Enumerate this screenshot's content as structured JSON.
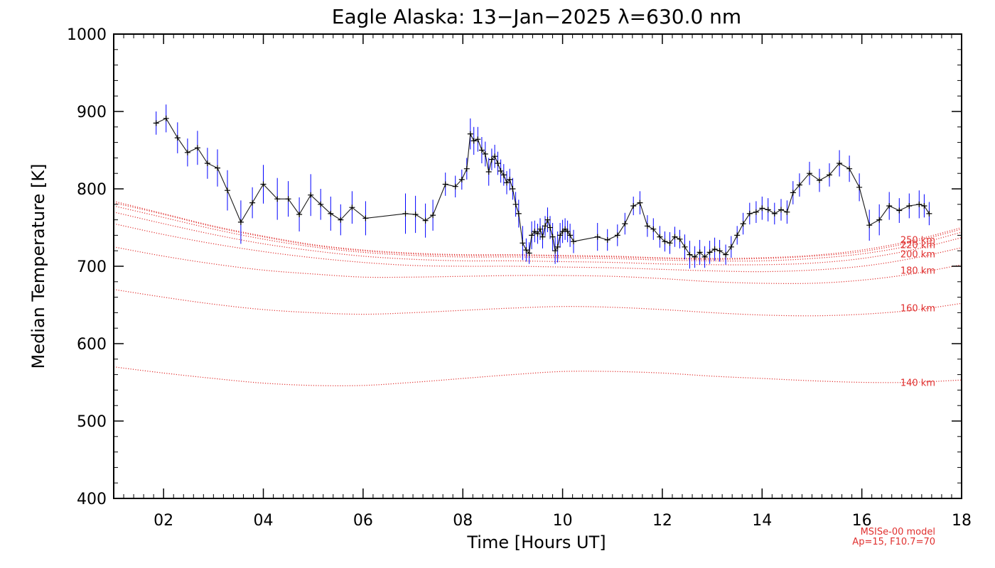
{
  "chart_data": {
    "type": "line",
    "title": "Eagle Alaska: 13−Jan−2025 λ=630.0 nm",
    "xlabel": "Time [Hours UT]",
    "ylabel": "Median Temperature [K]",
    "xlim": [
      1.0,
      18.0
    ],
    "ylim": [
      400,
      1000
    ],
    "x_ticks": [
      2,
      4,
      6,
      8,
      10,
      12,
      14,
      16,
      18
    ],
    "x_tick_labels": [
      "02",
      "04",
      "06",
      "08",
      "10",
      "12",
      "14",
      "16",
      "18"
    ],
    "y_ticks": [
      400,
      500,
      600,
      700,
      800,
      900,
      1000
    ],
    "y_tick_labels": [
      "400",
      "500",
      "600",
      "700",
      "800",
      "900",
      "1000"
    ],
    "colors": {
      "data_line": "#1a1a1a",
      "error_bars": "#0000ff",
      "model": "#e0302f"
    },
    "series": [
      {
        "name": "Median temperature",
        "x": [
          1.85,
          2.05,
          2.28,
          2.48,
          2.68,
          2.88,
          3.08,
          3.28,
          3.55,
          3.78,
          4.0,
          4.28,
          4.5,
          4.72,
          4.95,
          5.15,
          5.35,
          5.55,
          5.78,
          6.05,
          6.85,
          7.05,
          7.25,
          7.4,
          7.65,
          7.85,
          7.98,
          8.08,
          8.15,
          8.22,
          8.3,
          8.38,
          8.45,
          8.52,
          8.58,
          8.64,
          8.7,
          8.76,
          8.82,
          8.88,
          8.94,
          9.0,
          9.06,
          9.12,
          9.2,
          9.27,
          9.33,
          9.38,
          9.44,
          9.5,
          9.55,
          9.6,
          9.65,
          9.7,
          9.75,
          9.8,
          9.85,
          9.9,
          9.95,
          10.0,
          10.05,
          10.1,
          10.15,
          10.22,
          10.7,
          10.9,
          11.1,
          11.25,
          11.42,
          11.55,
          11.7,
          11.82,
          11.95,
          12.05,
          12.15,
          12.25,
          12.35,
          12.45,
          12.55,
          12.65,
          12.75,
          12.85,
          12.95,
          13.05,
          13.15,
          13.27,
          13.38,
          13.5,
          13.62,
          13.75,
          13.88,
          14.0,
          14.12,
          14.25,
          14.38,
          14.5,
          14.62,
          14.75,
          14.95,
          15.15,
          15.35,
          15.55,
          15.75,
          15.95,
          16.15,
          16.35,
          16.55,
          16.75,
          16.95,
          17.15,
          17.25,
          17.35
        ],
        "y": [
          885,
          891,
          866,
          847,
          853,
          833,
          827,
          798,
          757,
          782,
          806,
          787,
          787,
          767,
          792,
          780,
          768,
          760,
          776,
          762,
          768,
          767,
          759,
          766,
          806,
          803,
          812,
          826,
          871,
          862,
          864,
          850,
          845,
          822,
          838,
          842,
          833,
          823,
          818,
          808,
          812,
          800,
          780,
          768,
          730,
          721,
          717,
          740,
          745,
          742,
          748,
          738,
          752,
          760,
          750,
          738,
          720,
          725,
          740,
          745,
          748,
          745,
          740,
          732,
          738,
          734,
          740,
          755,
          778,
          782,
          752,
          748,
          738,
          732,
          730,
          738,
          735,
          725,
          715,
          712,
          718,
          712,
          718,
          722,
          720,
          715,
          725,
          740,
          755,
          768,
          770,
          775,
          773,
          768,
          773,
          770,
          795,
          805,
          820,
          811,
          818,
          833,
          826,
          802,
          753,
          760,
          778,
          772,
          778,
          780,
          778,
          768
        ]
      }
    ],
    "error_bars": [
      15,
      18,
      20,
      18,
      22,
      20,
      24,
      26,
      28,
      20,
      25,
      27,
      23,
      22,
      27,
      20,
      22,
      20,
      21,
      22,
      26,
      24,
      22,
      20,
      15,
      14,
      13,
      14,
      20,
      18,
      16,
      17,
      16,
      18,
      14,
      15,
      15,
      15,
      14,
      15,
      14,
      14,
      16,
      18,
      22,
      15,
      14,
      18,
      14,
      13,
      14,
      15,
      13,
      16,
      15,
      18,
      17,
      20,
      16,
      15,
      14,
      14,
      15,
      15,
      18,
      14,
      14,
      14,
      12,
      15,
      14,
      14,
      14,
      13,
      14,
      13,
      12,
      16,
      18,
      14,
      16,
      14,
      15,
      15,
      14,
      13,
      14,
      12,
      14,
      14,
      14,
      15,
      15,
      14,
      14,
      15,
      15,
      15,
      15,
      15,
      15,
      17,
      17,
      18,
      20,
      20,
      18,
      16,
      16,
      18,
      15,
      15
    ],
    "model": {
      "name": "MSISe-00 model",
      "x": [
        1.0,
        2.0,
        3.0,
        4.0,
        5.0,
        6.0,
        7.0,
        8.0,
        9.0,
        10.0,
        11.0,
        12.0,
        13.0,
        14.0,
        15.0,
        16.0,
        17.0,
        18.0
      ],
      "curves": [
        {
          "label": "140 km",
          "y": [
            570,
            562,
            555,
            549,
            546,
            546,
            550,
            555,
            560,
            564,
            564,
            562,
            558,
            555,
            552,
            550,
            550,
            553
          ]
        },
        {
          "label": "160 km",
          "y": [
            670,
            660,
            651,
            644,
            640,
            638,
            640,
            643,
            646,
            648,
            647,
            644,
            640,
            637,
            636,
            638,
            643,
            652
          ]
        },
        {
          "label": "180 km",
          "y": [
            725,
            713,
            703,
            695,
            690,
            686,
            686,
            687,
            688,
            688,
            687,
            684,
            680,
            678,
            678,
            682,
            690,
            702
          ]
        },
        {
          "label": "200 km",
          "y": [
            755,
            741,
            729,
            719,
            711,
            705,
            701,
            700,
            700,
            699,
            698,
            696,
            694,
            693,
            695,
            700,
            710,
            724
          ]
        },
        {
          "label": "220 km",
          "y": [
            770,
            755,
            741,
            729,
            720,
            713,
            709,
            707,
            707,
            706,
            705,
            703,
            702,
            702,
            704,
            710,
            721,
            737
          ]
        },
        {
          "label": "250 km",
          "y": [
            778,
            763,
            748,
            735,
            725,
            718,
            714,
            712,
            712,
            711,
            710,
            708,
            707,
            707,
            710,
            716,
            727,
            744
          ]
        },
        {
          "label": "",
          "y": [
            782,
            767,
            751,
            738,
            727,
            720,
            716,
            714,
            714,
            713,
            712,
            710,
            709,
            710,
            713,
            719,
            731,
            748
          ]
        },
        {
          "label": "",
          "y": [
            784,
            768,
            752,
            739,
            728,
            721,
            717,
            715,
            715,
            714,
            713,
            711,
            710,
            711,
            714,
            721,
            733,
            750
          ]
        }
      ]
    },
    "notes": [
      "MSISe-00 model",
      "Ap=15, F10.7=70"
    ]
  }
}
